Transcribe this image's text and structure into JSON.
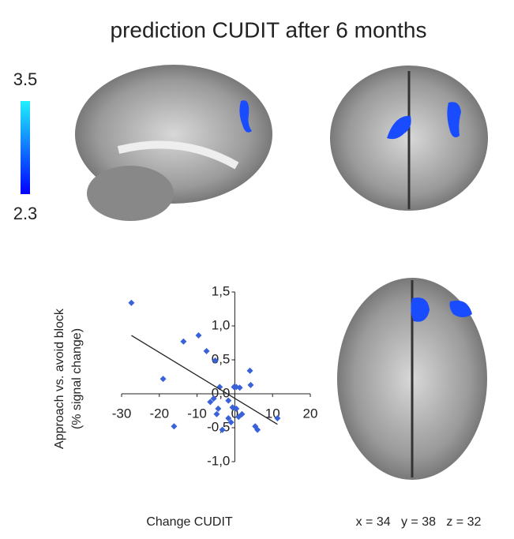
{
  "chart_data": {
    "type": "scatter",
    "title": "prediction CUDIT after 6 months",
    "x_label": "Change CUDIT",
    "y_label": [
      "Approach vs. avoid block",
      "(% signal change)"
    ],
    "coordinates": "x = 34   y = 38   z = 32",
    "colorbar": {
      "max": 3.5,
      "min": 2.3,
      "colors": [
        "#20f0ff",
        "#0000ff"
      ]
    },
    "x": [
      -27.4,
      -13.6,
      -9.6,
      -7.5,
      -5.2,
      -19,
      -16.1,
      -4,
      -5.6,
      -6.5,
      -4.4,
      -4.8,
      -3.3,
      -1.7,
      -1.7,
      -1,
      -0.2,
      0.4,
      1.3,
      1,
      -0.6,
      1.9,
      4,
      4.2,
      5.4,
      6,
      11.3,
      0.4
    ],
    "values": [
      1.34,
      0.77,
      0.86,
      0.63,
      0.49,
      0.22,
      -0.48,
      0.1,
      -0.07,
      -0.12,
      -0.22,
      -0.3,
      -0.53,
      -0.1,
      -0.36,
      -0.42,
      0.1,
      0.1,
      0.09,
      -0.34,
      -0.2,
      -0.3,
      0.34,
      0.13,
      -0.48,
      -0.53,
      -0.36,
      -0.22
    ],
    "color": "#3a62d8",
    "trendline": {
      "x": [
        -27.4,
        11.3
      ],
      "y": [
        0.86,
        -0.45
      ]
    },
    "xlim": [
      -30,
      20
    ],
    "xticks": [
      -30,
      -20,
      -10,
      0,
      10,
      20
    ],
    "ylim": [
      -1,
      1.5
    ],
    "yticks": [
      {
        "value": -1,
        "label": "-1,0"
      },
      {
        "value": -0.5,
        "label": "-0,5"
      },
      {
        "value": 0,
        "label": "0,0"
      },
      {
        "value": 0.5,
        "label": "0,5"
      },
      {
        "value": 1,
        "label": "1,0"
      },
      {
        "value": 1.5,
        "label": "1,5"
      }
    ]
  }
}
